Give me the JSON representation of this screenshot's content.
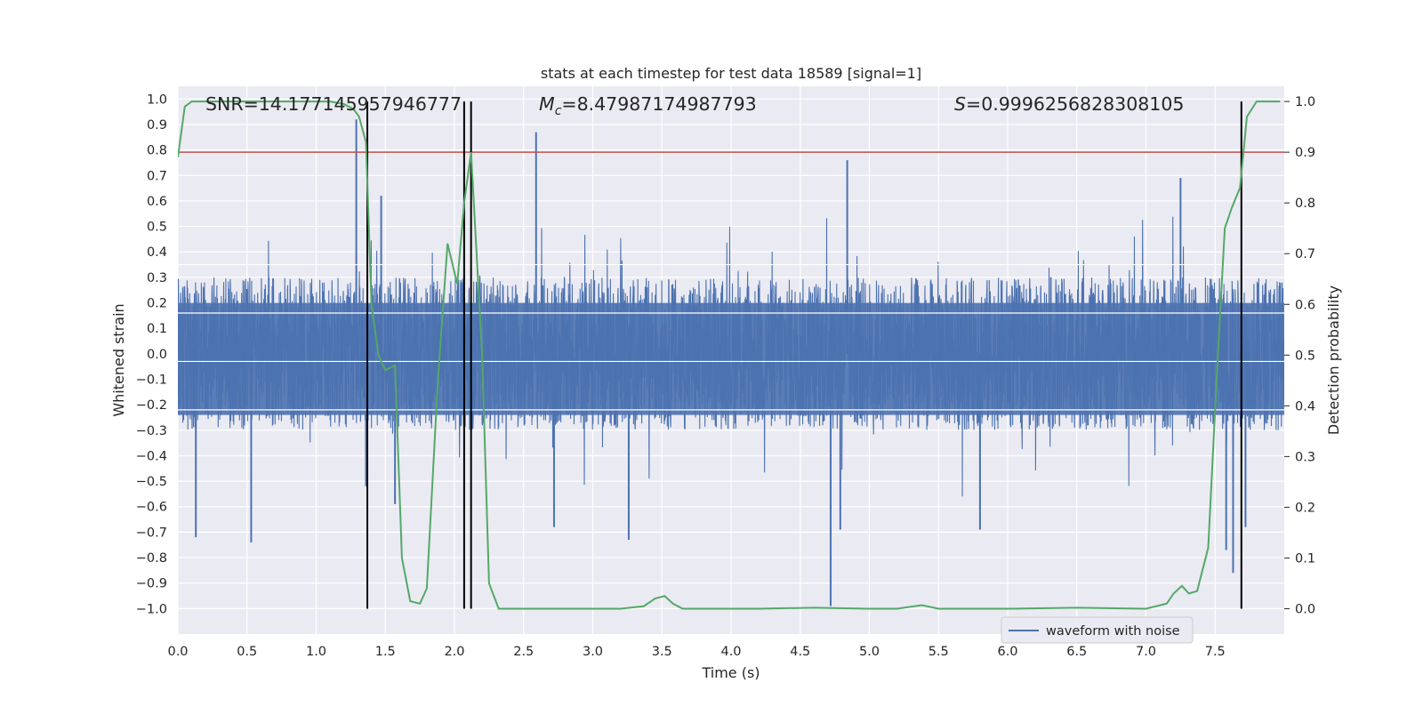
{
  "chart_data": {
    "type": "line",
    "title": "stats at each timestep for test data 18589 [signal=1]",
    "xlabel": "Time (s)",
    "ylabel_left": "Whitened strain",
    "ylabel_right": "Detection probability",
    "xlim": [
      0.0,
      8.0
    ],
    "ylim_left": [
      -1.1,
      1.05
    ],
    "ylim_right": [
      -0.05,
      1.03
    ],
    "x_ticks": [
      "0.0",
      "0.5",
      "1.0",
      "1.5",
      "2.0",
      "2.5",
      "3.0",
      "3.5",
      "4.0",
      "4.5",
      "5.0",
      "5.5",
      "6.0",
      "6.5",
      "7.0",
      "7.5"
    ],
    "y_left_ticks": [
      "1.0",
      "0.9",
      "0.8",
      "0.7",
      "0.6",
      "0.5",
      "0.4",
      "0.3",
      "0.2",
      "0.1",
      "0.0",
      "−0.1",
      "−0.2",
      "−0.3",
      "−0.4",
      "−0.5",
      "−0.6",
      "−0.7",
      "−0.8",
      "−0.9",
      "−1.0"
    ],
    "y_right_ticks": [
      "1.0",
      "0.9",
      "0.8",
      "0.7",
      "0.6",
      "0.5",
      "0.4",
      "0.3",
      "0.2",
      "0.1",
      "0.0"
    ],
    "grid": true,
    "legend_position": "bottom-right",
    "annotations": {
      "snr": "SNR=14.177145957946777",
      "mc_symbol": "M",
      "mc_sub": "c",
      "mc_value": "=8.47987174987793",
      "s_symbol": "S",
      "s_value": "=0.9996256828308105"
    },
    "series": [
      {
        "name": "waveform with noise",
        "axis": "left",
        "color": "#4c72b0",
        "kind": "noise",
        "envelope_typical": 0.3,
        "spikes": [
          {
            "x": 0.13,
            "y": -0.72
          },
          {
            "x": 0.53,
            "y": -0.74
          },
          {
            "x": 1.29,
            "y": 0.92
          },
          {
            "x": 1.36,
            "y": -0.52
          },
          {
            "x": 1.47,
            "y": 0.62
          },
          {
            "x": 1.57,
            "y": -0.59
          },
          {
            "x": 2.59,
            "y": 0.87
          },
          {
            "x": 2.72,
            "y": -0.68
          },
          {
            "x": 3.26,
            "y": -0.73
          },
          {
            "x": 4.72,
            "y": -0.99
          },
          {
            "x": 4.84,
            "y": 0.76
          },
          {
            "x": 4.79,
            "y": -0.69
          },
          {
            "x": 5.8,
            "y": -0.69
          },
          {
            "x": 7.58,
            "y": -0.77
          },
          {
            "x": 7.63,
            "y": -0.86
          },
          {
            "x": 7.72,
            "y": -0.68
          },
          {
            "x": 7.25,
            "y": 0.69
          }
        ]
      },
      {
        "name": "detection probability",
        "axis": "right",
        "color": "#55a868",
        "x": [
          0.0,
          0.05,
          0.1,
          0.2,
          0.5,
          0.8,
          1.0,
          1.1,
          1.2,
          1.27,
          1.31,
          1.36,
          1.4,
          1.45,
          1.5,
          1.57,
          1.62,
          1.68,
          1.75,
          1.8,
          1.88,
          1.95,
          2.02,
          2.07,
          2.12,
          2.2,
          2.25,
          2.32,
          2.4,
          2.6,
          3.0,
          3.2,
          3.37,
          3.45,
          3.52,
          3.58,
          3.65,
          3.8,
          4.2,
          4.6,
          5.0,
          5.2,
          5.38,
          5.5,
          6.0,
          6.5,
          7.0,
          7.15,
          7.2,
          7.26,
          7.31,
          7.37,
          7.45,
          7.52,
          7.57,
          7.62,
          7.68,
          7.73,
          7.8,
          7.87,
          7.97
        ],
        "y": [
          0.89,
          0.99,
          1.0,
          1.0,
          1.0,
          1.0,
          1.0,
          1.0,
          0.995,
          0.985,
          0.97,
          0.92,
          0.6,
          0.5,
          0.47,
          0.48,
          0.1,
          0.015,
          0.01,
          0.04,
          0.45,
          0.72,
          0.64,
          0.8,
          0.9,
          0.5,
          0.05,
          0.0,
          0.0,
          0.0,
          0.0,
          0.0,
          0.005,
          0.02,
          0.025,
          0.01,
          0.0,
          0.0,
          0.0,
          0.002,
          0.0,
          0.0,
          0.007,
          0.0,
          0.0,
          0.002,
          0.0,
          0.01,
          0.03,
          0.045,
          0.03,
          0.035,
          0.12,
          0.5,
          0.75,
          0.79,
          0.83,
          0.97,
          1.0,
          1.0,
          1.0
        ]
      }
    ],
    "threshold": {
      "axis": "right",
      "y": 0.9,
      "color": "#c44e52"
    },
    "vertical_markers": [
      1.37,
      2.07,
      2.12,
      7.69
    ],
    "vertical_marker_range_right": [
      0.0,
      1.0
    ],
    "colors": {
      "plot_background": "#eaeaf2",
      "grid": "#ffffff",
      "noise": "#4c72b0",
      "probability": "#55a868",
      "threshold": "#c44e52",
      "markers": "#000000"
    }
  },
  "legend": {
    "label": "waveform with noise"
  }
}
